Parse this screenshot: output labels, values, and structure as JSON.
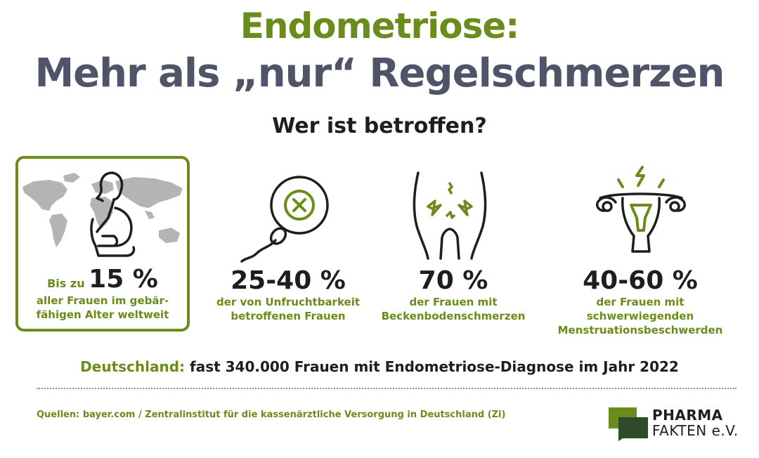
{
  "colors": {
    "green": "#6a8c1a",
    "slate": "#505468",
    "dark": "#1e1e1e",
    "map": "#b4b4b4",
    "logo_dark": "#2d4a2a",
    "logo_green": "#6a8c1a"
  },
  "title": {
    "line1": "Endometriose:",
    "line2": "Mehr als „nur“ Regelschmerzen"
  },
  "subtitle": "Wer ist betroffen?",
  "stats": [
    {
      "prefix": "Bis zu",
      "value": "15 %",
      "line1": "aller Frauen im gebär-",
      "line2": "fähigen Alter weltweit",
      "icon": "pregnant-woman-world-map-icon"
    },
    {
      "value": "25-40 %",
      "line1": "der von Unfruchtbarkeit",
      "line2": "betroffenen Frauen",
      "icon": "sperm-egg-blocked-icon"
    },
    {
      "value": "70 %",
      "line1": "der Frauen mit",
      "line2": "Beckenbodenschmerzen",
      "icon": "pelvic-pain-icon"
    },
    {
      "value": "40-60 %",
      "line1": "der Frauen mit schwerwiegenden",
      "line2": "Menstruationsbeschwerden",
      "icon": "uterus-pain-icon"
    }
  ],
  "germany": {
    "label": "Deutschland:",
    "text": "fast 340.000 Frauen mit Endometriose-Diagnose im Jahr 2022"
  },
  "sources": "Quellen: bayer.com / Zentralinstitut für die kassenärztliche Versorgung in Deutschland (Zi)",
  "logo": {
    "line1": "PHARMA",
    "line2": "FAKTEN e.V."
  }
}
